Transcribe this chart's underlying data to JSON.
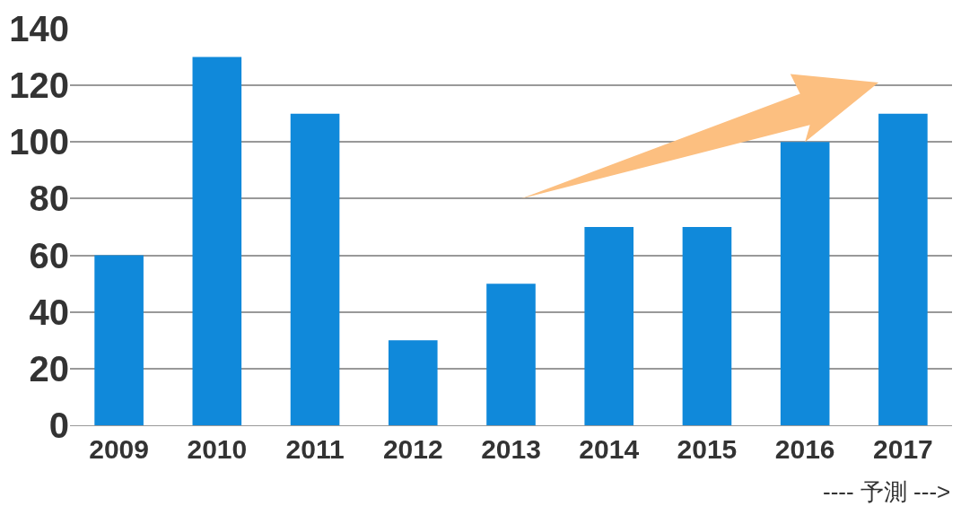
{
  "chart_data": {
    "type": "bar",
    "categories": [
      "2009",
      "2010",
      "2011",
      "2012",
      "2013",
      "2014",
      "2015",
      "2016",
      "2017"
    ],
    "values": [
      60,
      130,
      110,
      30,
      50,
      70,
      70,
      100,
      110
    ],
    "color": "#1089da",
    "ylim": [
      0,
      140
    ],
    "yticks": [
      0,
      20,
      40,
      60,
      80,
      100,
      120,
      140
    ],
    "grid": "y",
    "annotations": [
      "---- 予測 --->"
    ]
  }
}
